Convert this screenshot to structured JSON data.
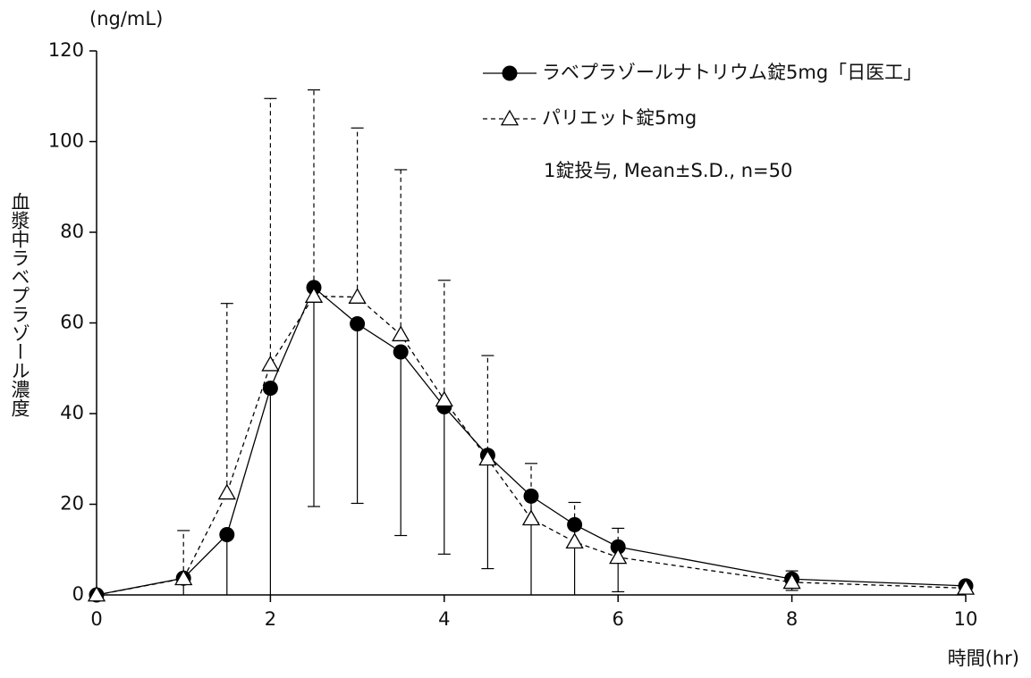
{
  "chart_data": {
    "type": "line",
    "y_unit": "(ng/mL)",
    "ylabel": "血漿中ラベプラゾール濃度",
    "xlabel": "時間(hr)",
    "annotation": "1錠投与, Mean±S.D., n=50",
    "x": [
      0,
      1,
      1.5,
      2,
      2.5,
      3,
      3.5,
      4,
      4.5,
      5,
      5.5,
      6,
      8,
      10
    ],
    "series": [
      {
        "name": "ラベプラゾールナトリウム錠5mg「日医工」",
        "color": "#000000",
        "marker": "circle",
        "dash": "solid",
        "errorbar": "lower",
        "values": [
          0,
          3.7,
          13.3,
          45.6,
          67.8,
          59.8,
          53.6,
          41.5,
          30.8,
          21.8,
          15.5,
          10.6,
          3.5,
          2.0
        ],
        "sd": [
          0,
          4,
          16,
          48,
          48.3,
          39.6,
          40.5,
          32.5,
          25,
          23,
          16,
          9.9,
          2.5,
          1
        ]
      },
      {
        "name": "パリエット錠5mg",
        "color": "#000000",
        "marker": "triangle",
        "dash": "dashed",
        "errorbar": "upper",
        "values": [
          0,
          3.6,
          22.5,
          50.8,
          65.9,
          65.7,
          57.4,
          43,
          30,
          16.8,
          11.7,
          8.3,
          2.8,
          1.5
        ],
        "sd": [
          0,
          10.6,
          41.8,
          58.7,
          45.5,
          37.3,
          36.4,
          26.4,
          22.8,
          12.2,
          8.7,
          6.4,
          2.5,
          1
        ]
      }
    ],
    "xlim": [
      0,
      10
    ],
    "xticks": [
      0,
      2,
      4,
      6,
      8,
      10
    ],
    "ylim": [
      0,
      120
    ],
    "yticks": [
      0,
      20,
      40,
      60,
      80,
      100,
      120
    ],
    "grid": false
  }
}
